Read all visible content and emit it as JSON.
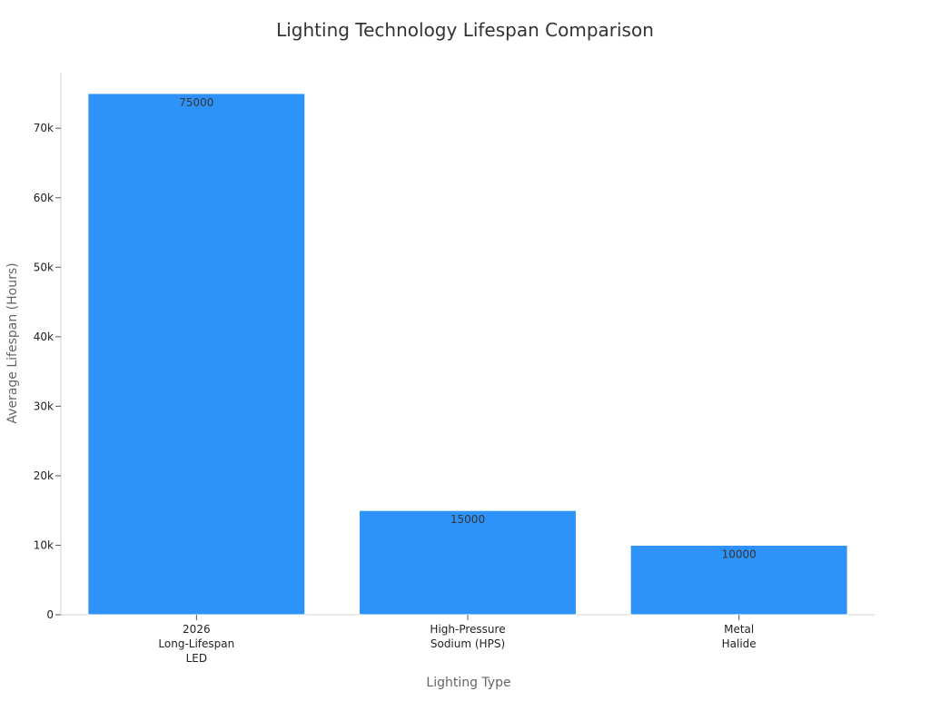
{
  "chart_data": {
    "type": "bar",
    "title": "Lighting Technology Lifespan Comparison",
    "xlabel": "Lighting Type",
    "ylabel": "Average Lifespan (Hours)",
    "categories": [
      [
        "2026",
        "Long-Lifespan",
        "LED"
      ],
      [
        "High-Pressure",
        "Sodium (HPS)"
      ],
      [
        "Metal",
        "Halide"
      ]
    ],
    "values": [
      75000,
      15000,
      10000
    ],
    "data_labels": [
      "75000",
      "15000",
      "10000"
    ],
    "ylim": [
      0,
      78000
    ],
    "yticks": [
      0,
      10000,
      20000,
      30000,
      40000,
      50000,
      60000,
      70000
    ],
    "ytick_labels": [
      "0",
      "10k",
      "20k",
      "30k",
      "40k",
      "50k",
      "60k",
      "70k"
    ],
    "grid": false,
    "legend": "none",
    "colors": {
      "bar": "#2e93f8",
      "bar_edge": "#ffffff",
      "axis": "#d0d0d0",
      "title": "#333333",
      "tick_text": "#222222",
      "label_text": "#666666",
      "data_label": "#333333"
    }
  }
}
